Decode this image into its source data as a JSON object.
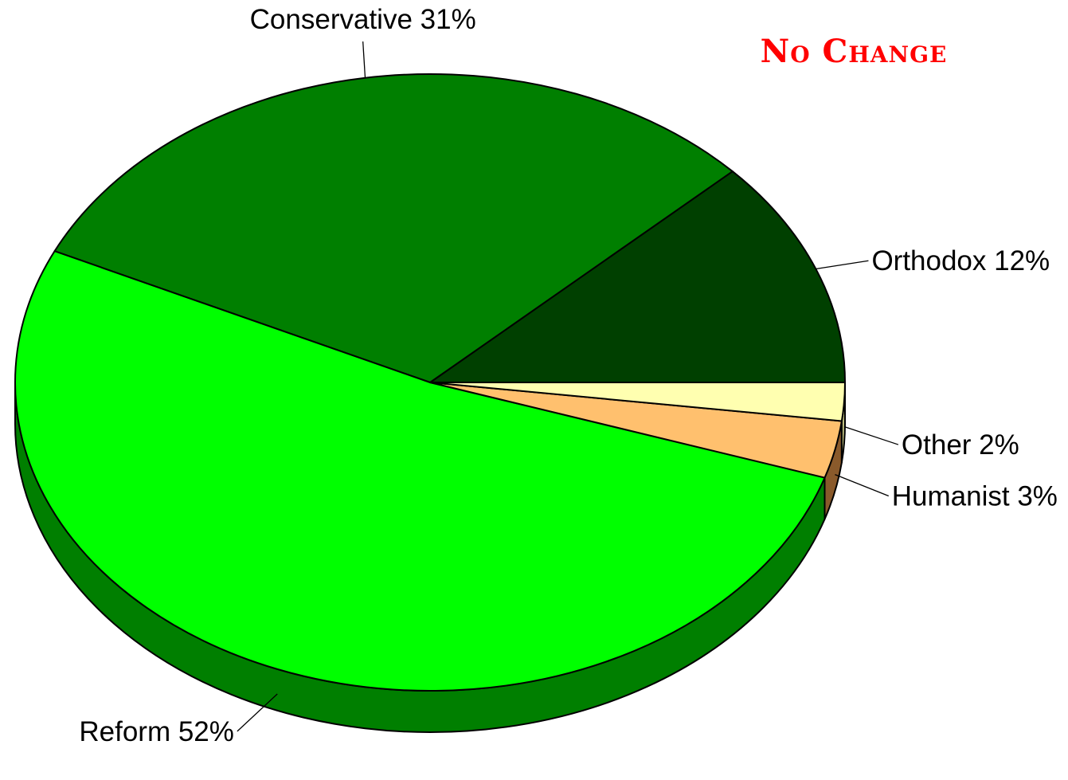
{
  "chart_data": {
    "type": "pie",
    "title": "No Change",
    "title_color": "#ff0000",
    "slices": [
      {
        "label": "Orthodox",
        "pct_label": "12%",
        "value": 12,
        "color": "#004000",
        "side_color": "#002600"
      },
      {
        "label": "Conservative",
        "pct_label": "31%",
        "value": 31,
        "color": "#007f00",
        "side_color": "#005200"
      },
      {
        "label": "Reform",
        "pct_label": "52%",
        "value": 52,
        "color": "#00ff00",
        "side_color": "#007f00"
      },
      {
        "label": "Humanist",
        "pct_label": "3%",
        "value": 3,
        "color": "#ffc06e",
        "side_color": "#8a5a2b"
      },
      {
        "label": "Other",
        "pct_label": "2%",
        "value": 2,
        "color": "#ffffb0",
        "side_color": "#bfbf80"
      }
    ],
    "start_angle_deg": 0,
    "direction": "counterclockwise",
    "style": "3d-tilted",
    "legend": "none"
  }
}
